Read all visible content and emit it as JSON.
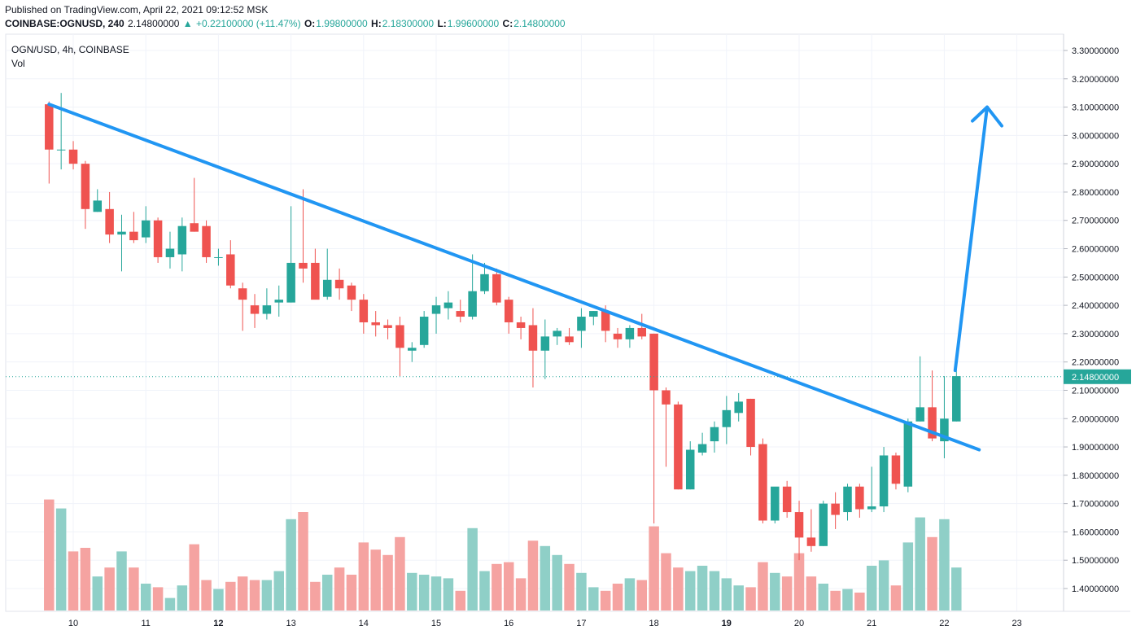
{
  "header": {
    "published": "Published on TradingView.com, April 22, 2021 09:12:52 MSK",
    "symbol": "COINBASE:OGNUSD, 240",
    "price": "2.14800000",
    "arrow": "▲",
    "change": "+0.22100000 (+11.47%)",
    "o_label": "O:",
    "o_value": "1.99800000",
    "h_label": "H:",
    "h_value": "2.18300000",
    "l_label": "L:",
    "l_value": "1.99600000",
    "c_label": "C:",
    "c_value": "2.14800000"
  },
  "legend": {
    "series": "OGN/USD, 4h, COINBASE",
    "volume": "Vol"
  },
  "colors": {
    "up": "#26a69a",
    "down": "#ef5350",
    "up_vol": "#8fcfc7",
    "down_vol": "#f5a3a1",
    "trend": "#2196f3",
    "last_price_bg": "#26a69a"
  },
  "chart_data": {
    "type": "candlestick",
    "symbol": "OGN/USD",
    "timeframe": "4h",
    "exchange": "COINBASE",
    "ylim": [
      1.34,
      3.33
    ],
    "y_ticks": [
      "3.30000000",
      "3.20000000",
      "3.10000000",
      "3.00000000",
      "2.90000000",
      "2.80000000",
      "2.70000000",
      "2.60000000",
      "2.50000000",
      "2.40000000",
      "2.30000000",
      "2.20000000",
      "2.10000000",
      "2.00000000",
      "1.90000000",
      "1.80000000",
      "1.70000000",
      "1.60000000",
      "1.50000000",
      "1.40000000"
    ],
    "x_ticks": [
      {
        "label": "10",
        "bold": false
      },
      {
        "label": "11",
        "bold": false
      },
      {
        "label": "12",
        "bold": true
      },
      {
        "label": "13",
        "bold": false
      },
      {
        "label": "14",
        "bold": false
      },
      {
        "label": "15",
        "bold": false
      },
      {
        "label": "16",
        "bold": false
      },
      {
        "label": "17",
        "bold": false
      },
      {
        "label": "18",
        "bold": false
      },
      {
        "label": "19",
        "bold": true
      },
      {
        "label": "20",
        "bold": false
      },
      {
        "label": "21",
        "bold": false
      },
      {
        "label": "22",
        "bold": false
      },
      {
        "label": "23",
        "bold": false
      }
    ],
    "last_price": "2.14800000",
    "candles": [
      {
        "o": 3.11,
        "h": 3.12,
        "l": 2.83,
        "c": 2.95,
        "v": 0.62
      },
      {
        "o": 2.95,
        "h": 3.15,
        "l": 2.88,
        "c": 2.95,
        "v": 0.57
      },
      {
        "o": 2.95,
        "h": 2.98,
        "l": 2.88,
        "c": 2.9,
        "v": 0.33
      },
      {
        "o": 2.9,
        "h": 2.91,
        "l": 2.67,
        "c": 2.74,
        "v": 0.35
      },
      {
        "o": 2.73,
        "h": 2.81,
        "l": 2.73,
        "c": 2.77,
        "v": 0.19
      },
      {
        "o": 2.74,
        "h": 2.8,
        "l": 2.62,
        "c": 2.65,
        "v": 0.24
      },
      {
        "o": 2.65,
        "h": 2.72,
        "l": 2.52,
        "c": 2.66,
        "v": 0.33
      },
      {
        "o": 2.66,
        "h": 2.73,
        "l": 2.62,
        "c": 2.63,
        "v": 0.24
      },
      {
        "o": 2.64,
        "h": 2.75,
        "l": 2.62,
        "c": 2.7,
        "v": 0.15
      },
      {
        "o": 2.7,
        "h": 2.71,
        "l": 2.55,
        "c": 2.57,
        "v": 0.13
      },
      {
        "o": 2.57,
        "h": 2.66,
        "l": 2.53,
        "c": 2.6,
        "v": 0.07
      },
      {
        "o": 2.58,
        "h": 2.71,
        "l": 2.52,
        "c": 2.68,
        "v": 0.14
      },
      {
        "o": 2.69,
        "h": 2.85,
        "l": 2.66,
        "c": 2.66,
        "v": 0.37
      },
      {
        "o": 2.68,
        "h": 2.7,
        "l": 2.55,
        "c": 2.57,
        "v": 0.17
      },
      {
        "o": 2.57,
        "h": 2.6,
        "l": 2.54,
        "c": 2.57,
        "v": 0.12
      },
      {
        "o": 2.58,
        "h": 2.63,
        "l": 2.46,
        "c": 2.47,
        "v": 0.16
      },
      {
        "o": 2.46,
        "h": 2.48,
        "l": 2.31,
        "c": 2.42,
        "v": 0.19
      },
      {
        "o": 2.4,
        "h": 2.44,
        "l": 2.32,
        "c": 2.37,
        "v": 0.17
      },
      {
        "o": 2.37,
        "h": 2.46,
        "l": 2.35,
        "c": 2.4,
        "v": 0.17
      },
      {
        "o": 2.41,
        "h": 2.47,
        "l": 2.36,
        "c": 2.42,
        "v": 0.22
      },
      {
        "o": 2.41,
        "h": 2.75,
        "l": 2.41,
        "c": 2.55,
        "v": 0.51
      },
      {
        "o": 2.55,
        "h": 2.81,
        "l": 2.48,
        "c": 2.53,
        "v": 0.55
      },
      {
        "o": 2.55,
        "h": 2.6,
        "l": 2.43,
        "c": 2.42,
        "v": 0.16
      },
      {
        "o": 2.43,
        "h": 2.6,
        "l": 2.42,
        "c": 2.49,
        "v": 0.2
      },
      {
        "o": 2.49,
        "h": 2.53,
        "l": 2.42,
        "c": 2.46,
        "v": 0.24
      },
      {
        "o": 2.47,
        "h": 2.48,
        "l": 2.38,
        "c": 2.42,
        "v": 0.2
      },
      {
        "o": 2.42,
        "h": 2.44,
        "l": 2.3,
        "c": 2.34,
        "v": 0.38
      },
      {
        "o": 2.34,
        "h": 2.38,
        "l": 2.29,
        "c": 2.33,
        "v": 0.34
      },
      {
        "o": 2.33,
        "h": 2.35,
        "l": 2.28,
        "c": 2.32,
        "v": 0.31
      },
      {
        "o": 2.33,
        "h": 2.36,
        "l": 2.15,
        "c": 2.25,
        "v": 0.41
      },
      {
        "o": 2.24,
        "h": 2.27,
        "l": 2.2,
        "c": 2.25,
        "v": 0.21
      },
      {
        "o": 2.26,
        "h": 2.38,
        "l": 2.25,
        "c": 2.36,
        "v": 0.2
      },
      {
        "o": 2.37,
        "h": 2.43,
        "l": 2.3,
        "c": 2.4,
        "v": 0.19
      },
      {
        "o": 2.39,
        "h": 2.45,
        "l": 2.35,
        "c": 2.41,
        "v": 0.18
      },
      {
        "o": 2.38,
        "h": 2.42,
        "l": 2.34,
        "c": 2.36,
        "v": 0.11
      },
      {
        "o": 2.36,
        "h": 2.58,
        "l": 2.35,
        "c": 2.45,
        "v": 0.46
      },
      {
        "o": 2.45,
        "h": 2.55,
        "l": 2.44,
        "c": 2.51,
        "v": 0.22
      },
      {
        "o": 2.51,
        "h": 2.53,
        "l": 2.4,
        "c": 2.41,
        "v": 0.26
      },
      {
        "o": 2.42,
        "h": 2.43,
        "l": 2.3,
        "c": 2.34,
        "v": 0.27
      },
      {
        "o": 2.34,
        "h": 2.36,
        "l": 2.28,
        "c": 2.32,
        "v": 0.18
      },
      {
        "o": 2.33,
        "h": 2.39,
        "l": 2.11,
        "c": 2.24,
        "v": 0.39
      },
      {
        "o": 2.24,
        "h": 2.35,
        "l": 2.14,
        "c": 2.29,
        "v": 0.36
      },
      {
        "o": 2.29,
        "h": 2.32,
        "l": 2.26,
        "c": 2.31,
        "v": 0.31
      },
      {
        "o": 2.29,
        "h": 2.32,
        "l": 2.26,
        "c": 2.27,
        "v": 0.26
      },
      {
        "o": 2.31,
        "h": 2.39,
        "l": 2.25,
        "c": 2.36,
        "v": 0.21
      },
      {
        "o": 2.36,
        "h": 2.38,
        "l": 2.33,
        "c": 2.38,
        "v": 0.13
      },
      {
        "o": 2.38,
        "h": 2.4,
        "l": 2.27,
        "c": 2.31,
        "v": 0.11
      },
      {
        "o": 2.3,
        "h": 2.32,
        "l": 2.25,
        "c": 2.28,
        "v": 0.15
      },
      {
        "o": 2.28,
        "h": 2.33,
        "l": 2.25,
        "c": 2.32,
        "v": 0.18
      },
      {
        "o": 2.32,
        "h": 2.37,
        "l": 2.28,
        "c": 2.29,
        "v": 0.17
      },
      {
        "o": 2.3,
        "h": 2.3,
        "l": 1.63,
        "c": 2.1,
        "v": 0.47
      },
      {
        "o": 2.1,
        "h": 2.11,
        "l": 1.83,
        "c": 2.05,
        "v": 0.32
      },
      {
        "o": 2.05,
        "h": 2.06,
        "l": 1.75,
        "c": 1.75,
        "v": 0.24
      },
      {
        "o": 1.75,
        "h": 1.92,
        "l": 1.75,
        "c": 1.89,
        "v": 0.22
      },
      {
        "o": 1.88,
        "h": 1.95,
        "l": 1.87,
        "c": 1.91,
        "v": 0.25
      },
      {
        "o": 1.92,
        "h": 1.99,
        "l": 1.88,
        "c": 1.97,
        "v": 0.22
      },
      {
        "o": 1.97,
        "h": 2.08,
        "l": 1.91,
        "c": 2.03,
        "v": 0.18
      },
      {
        "o": 2.02,
        "h": 2.09,
        "l": 1.99,
        "c": 2.06,
        "v": 0.14
      },
      {
        "o": 2.07,
        "h": 2.07,
        "l": 1.87,
        "c": 1.9,
        "v": 0.13
      },
      {
        "o": 1.91,
        "h": 1.93,
        "l": 1.63,
        "c": 1.64,
        "v": 0.27
      },
      {
        "o": 1.64,
        "h": 1.75,
        "l": 1.63,
        "c": 1.76,
        "v": 0.21
      },
      {
        "o": 1.76,
        "h": 1.78,
        "l": 1.65,
        "c": 1.67,
        "v": 0.19
      },
      {
        "o": 1.67,
        "h": 1.71,
        "l": 1.5,
        "c": 1.58,
        "v": 0.32
      },
      {
        "o": 1.58,
        "h": 1.68,
        "l": 1.53,
        "c": 1.55,
        "v": 0.19
      },
      {
        "o": 1.55,
        "h": 1.71,
        "l": 1.55,
        "c": 1.7,
        "v": 0.15
      },
      {
        "o": 1.7,
        "h": 1.74,
        "l": 1.61,
        "c": 1.66,
        "v": 0.11
      },
      {
        "o": 1.67,
        "h": 1.77,
        "l": 1.64,
        "c": 1.76,
        "v": 0.12
      },
      {
        "o": 1.76,
        "h": 1.77,
        "l": 1.65,
        "c": 1.68,
        "v": 0.1
      },
      {
        "o": 1.68,
        "h": 1.83,
        "l": 1.67,
        "c": 1.69,
        "v": 0.25
      },
      {
        "o": 1.69,
        "h": 1.9,
        "l": 1.67,
        "c": 1.87,
        "v": 0.28
      },
      {
        "o": 1.87,
        "h": 1.88,
        "l": 1.75,
        "c": 1.77,
        "v": 0.14
      },
      {
        "o": 1.76,
        "h": 2.0,
        "l": 1.74,
        "c": 1.99,
        "v": 0.38
      },
      {
        "o": 1.99,
        "h": 2.22,
        "l": 1.99,
        "c": 2.04,
        "v": 0.52
      },
      {
        "o": 2.04,
        "h": 2.17,
        "l": 1.92,
        "c": 1.93,
        "v": 0.41
      },
      {
        "o": 1.92,
        "h": 2.15,
        "l": 1.86,
        "c": 2.0,
        "v": 0.51
      },
      {
        "o": 1.99,
        "h": 2.18,
        "l": 1.99,
        "c": 2.15,
        "v": 0.24
      }
    ],
    "annotations": [
      {
        "type": "trendline",
        "from_candle": 0,
        "from_price": 3.11,
        "to_day": 22.48,
        "to_price": 1.89
      },
      {
        "type": "arrow",
        "from_day": 22.15,
        "from_price": 2.17,
        "to_day": 22.59,
        "to_price": 3.1
      }
    ]
  }
}
